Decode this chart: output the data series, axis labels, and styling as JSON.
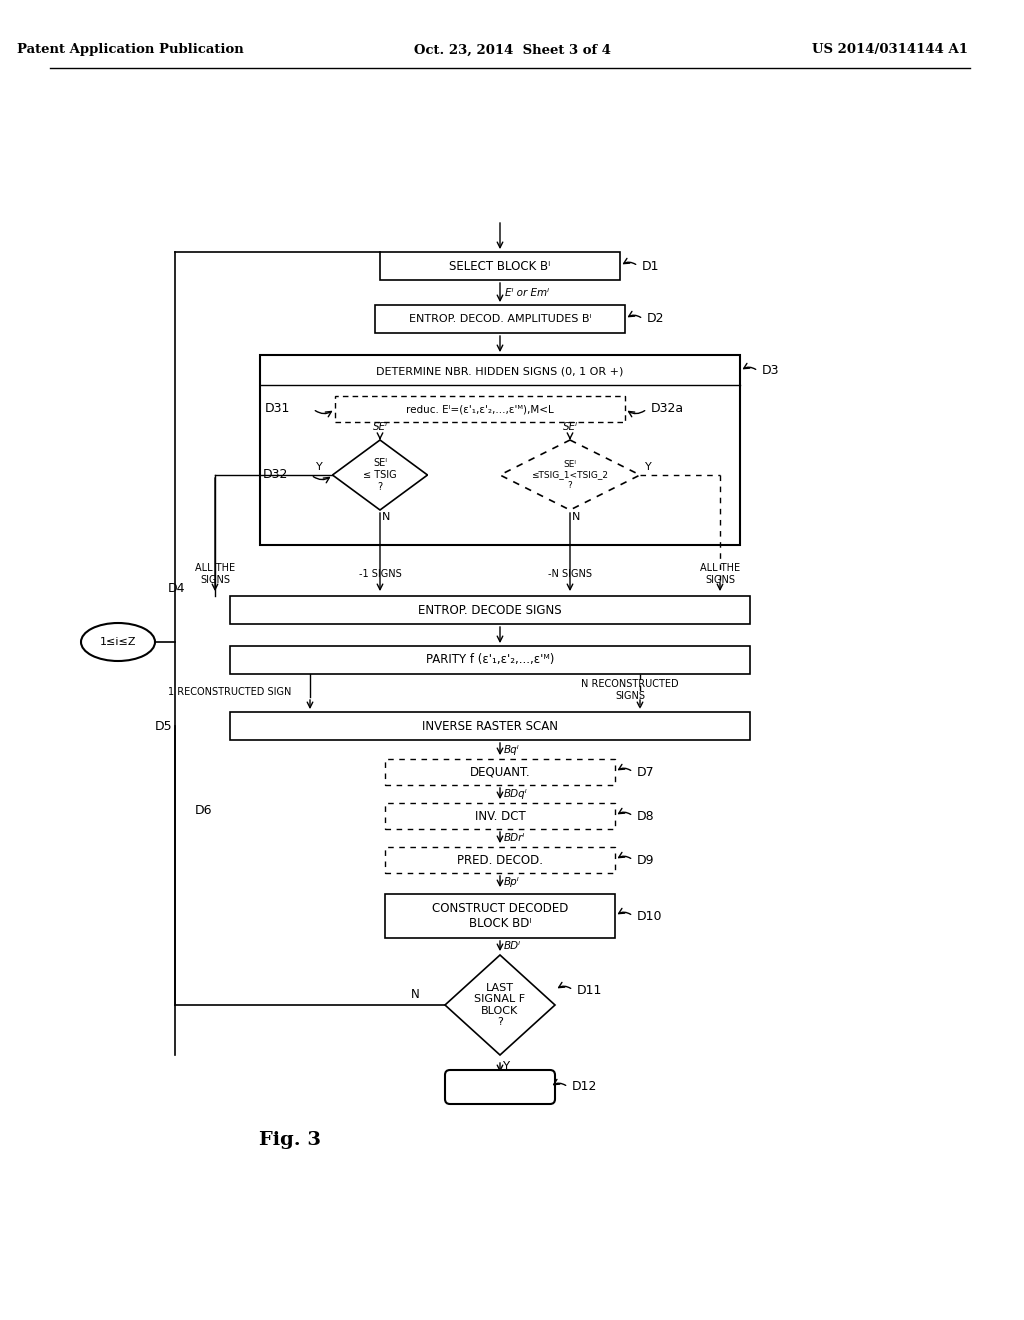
{
  "bg_color": "#ffffff",
  "header_left": "Patent Application Publication",
  "header_mid": "Oct. 23, 2014  Sheet 3 of 4",
  "header_right": "US 2014/0314144 A1",
  "fig_label": "Fig. 3"
}
